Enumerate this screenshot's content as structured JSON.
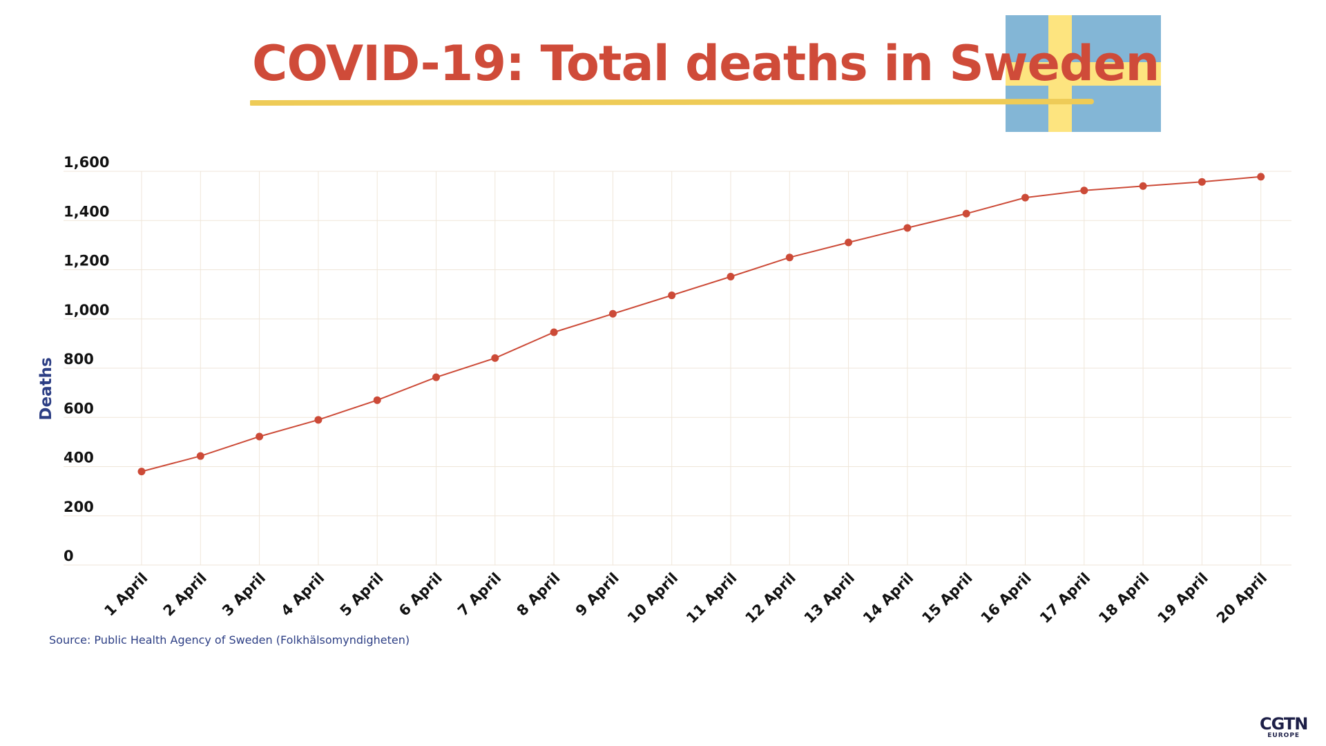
{
  "header": {
    "title": "COVID-19: Total deaths in Sweden"
  },
  "flag": {
    "blue": "#83b6d6",
    "yellow": "#fde47f"
  },
  "colors": {
    "title": "#cf4b39",
    "underline": "#eecb57",
    "line": "#cc4a37",
    "grid": "#efe6d9",
    "ylabel": "#2c3e84"
  },
  "chart_data": {
    "type": "line",
    "title": "COVID-19: Total deaths in Sweden",
    "xlabel": "",
    "ylabel": "Deaths",
    "categories": [
      "1 April",
      "2 April",
      "3 April",
      "4 April",
      "5 April",
      "6 April",
      "7 April",
      "8 April",
      "9 April",
      "10 April",
      "11 April",
      "12 April",
      "13 April",
      "14 April",
      "15 April",
      "16 April",
      "17 April",
      "18 April",
      "19 April",
      "20 April"
    ],
    "values": [
      380,
      443,
      522,
      590,
      670,
      763,
      841,
      946,
      1021,
      1096,
      1172,
      1250,
      1311,
      1370,
      1428,
      1493,
      1522,
      1540,
      1557,
      1578
    ],
    "y_ticks": [
      "0",
      "200",
      "400",
      "600",
      "800",
      "1,000",
      "1,200",
      "1,400",
      "1,600"
    ],
    "ylim": [
      0,
      1600
    ],
    "grid": true,
    "legend": "none"
  },
  "footer": {
    "source": "Source: Public Health Agency of Sweden (Folkhälsomyndigheten)",
    "logo_main": "CGTN",
    "logo_sub": "EUROPE"
  }
}
